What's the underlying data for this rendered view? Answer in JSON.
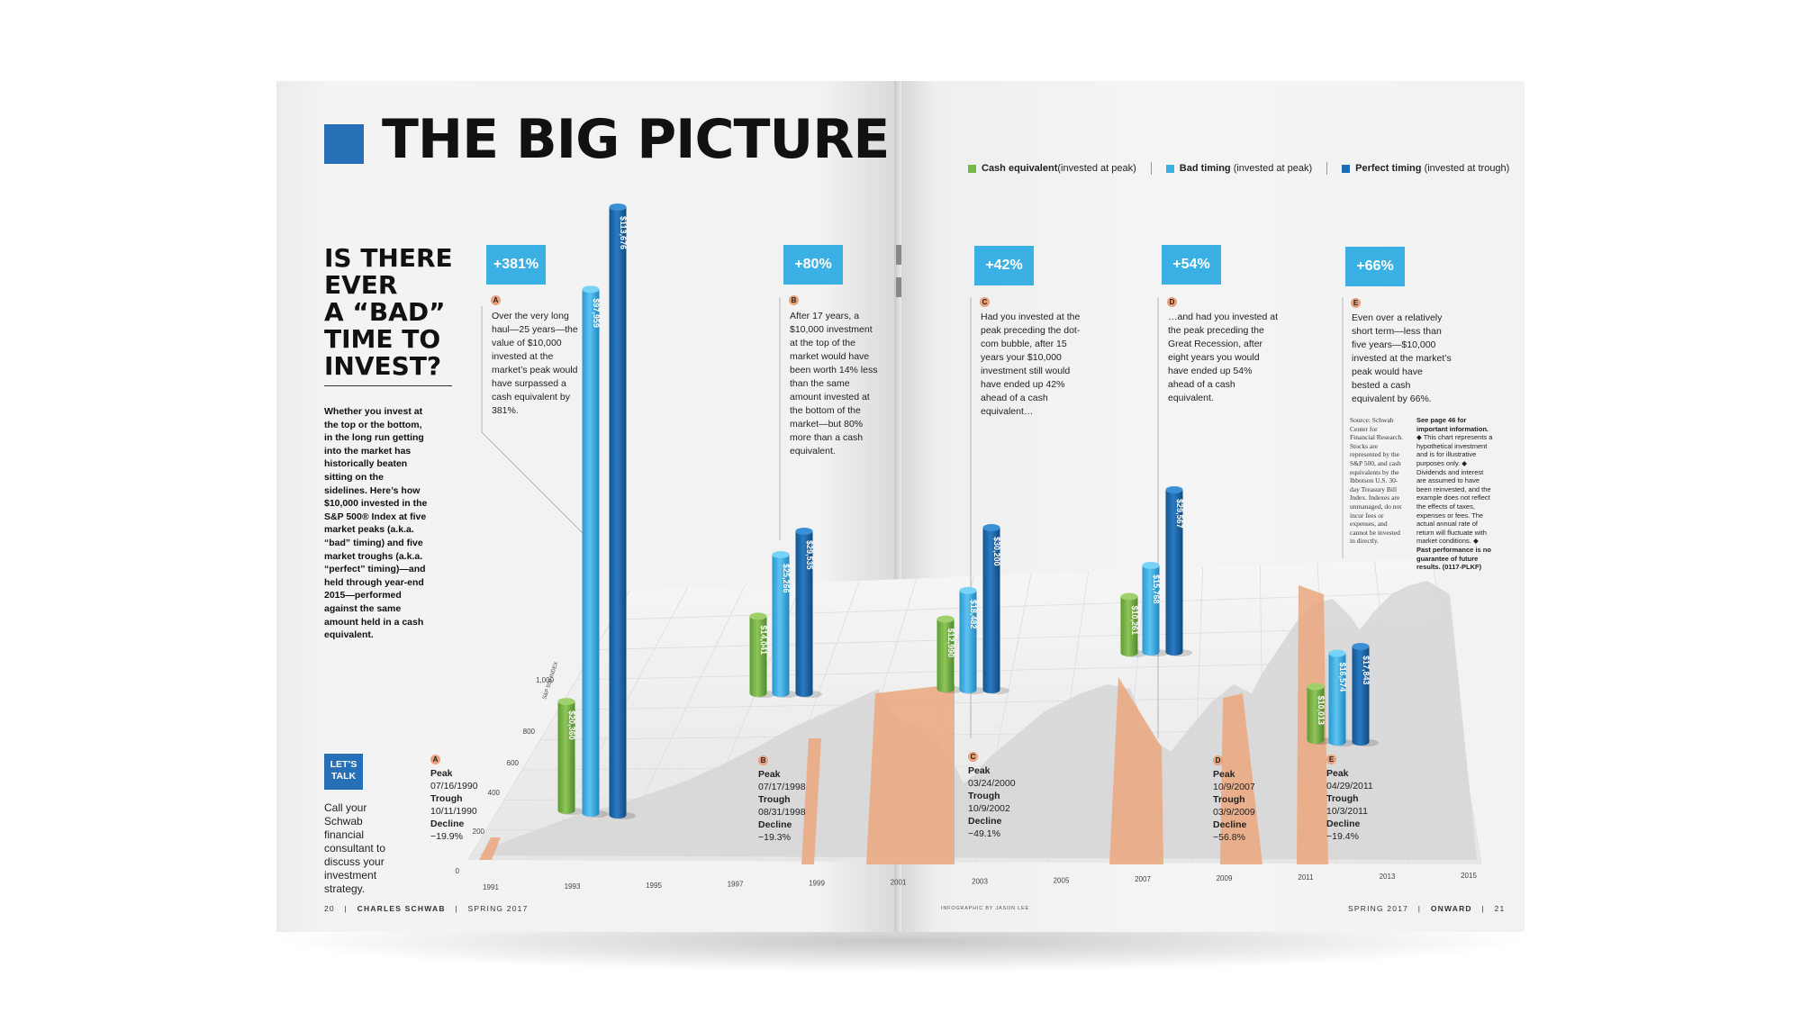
{
  "header": {
    "title": "THE BIG PICTURE"
  },
  "question": [
    "IS THERE",
    "EVER",
    "A “BAD”",
    "TIME TO",
    "INVEST?"
  ],
  "intro": "Whether you invest at the top or the bottom, in the long run getting into the market has historically beaten sitting on the sidelines. Here’s how $10,000 invested in the S&P 500® Index at five market peaks (a.k.a. “bad” timing) and five market troughs (a.k.a. “perfect” timing)—and held through year-end 2015—performed against the same amount held in a cash equivalent.",
  "lets_talk": {
    "badge": "LET’S TALK",
    "text": "Call your Schwab financial consultant to discuss your investment strategy."
  },
  "legend": [
    {
      "name": "Cash equivalent",
      "note": "(invested at peak)",
      "color": "#7ab648"
    },
    {
      "name": "Bad timing",
      "note": "(invested at peak)",
      "color": "#3ab0e4"
    },
    {
      "name": "Perfect timing",
      "note": "(invested at trough)",
      "color": "#1f6db0"
    }
  ],
  "periods": [
    {
      "letter": "A",
      "pct": "+381%",
      "desc": "Over the very long haul—25 years—the value of $10,000 invested at the market’s peak would have surpassed a cash equivalent by 381%.",
      "peak_label": "Peak",
      "peak": "07/16/1990",
      "trough_label": "Trough",
      "trough": "10/11/1990",
      "decline_label": "Decline",
      "decline": "−19.9%",
      "bars": [
        "$20,360",
        "$97,959",
        "$113,676"
      ],
      "values": [
        20360,
        97959,
        113676
      ]
    },
    {
      "letter": "B",
      "pct": "+80%",
      "desc": "After 17 years, a $10,000 investment at the top of the market would have been worth 14% less than the same amount invested at the bottom of the market—but 80% more than a cash equivalent.",
      "peak_label": "Peak",
      "peak": "07/17/1998",
      "trough_label": "Trough",
      "trough": "08/31/1998",
      "decline_label": "Decline",
      "decline": "−19.3%",
      "bars": [
        "$14,041",
        "$25,266",
        "$29,535"
      ],
      "values": [
        14041,
        25266,
        29535
      ]
    },
    {
      "letter": "C",
      "pct": "+42%",
      "desc": "Had you invested at the peak preceding the dot-com bubble, after 15 years your $10,000 investment still would have ended up 42% ahead of a cash equivalent…",
      "peak_label": "Peak",
      "peak": "03/24/2000",
      "trough_label": "Trough",
      "trough": "10/9/2002",
      "decline_label": "Decline",
      "decline": "−49.1%",
      "bars": [
        "$12,990",
        "$18,482",
        "$30,200"
      ],
      "values": [
        12990,
        18482,
        30200
      ]
    },
    {
      "letter": "D",
      "pct": "+54%",
      "desc": "…and had you invested at the peak preceding the Great Recession, after eight years you would have ended up 54% ahead of a cash equivalent.",
      "peak_label": "Peak",
      "peak": "10/9/2007",
      "trough_label": "Trough",
      "trough": "03/9/2009",
      "decline_label": "Decline",
      "decline": "−56.8%",
      "bars": [
        "$10,261",
        "$15,768",
        "$29,567"
      ],
      "values": [
        10261,
        15768,
        29567
      ]
    },
    {
      "letter": "E",
      "pct": "+66%",
      "desc": "Even over a relatively short term—less than five years—$10,000 invested at the market’s peak would have bested a cash equivalent by 66%.",
      "peak_label": "Peak",
      "peak": "04/29/2011",
      "trough_label": "Trough",
      "trough": "10/3/2011",
      "decline_label": "Decline",
      "decline": "−19.4%",
      "bars": [
        "$10,013",
        "$16,574",
        "$17,843"
      ],
      "values": [
        10013,
        16574,
        17843
      ]
    }
  ],
  "axis": {
    "y_ticks": [
      "0",
      "200",
      "400",
      "600",
      "800",
      "1,000"
    ],
    "y_label": "S&P 500 INDEX",
    "x_ticks": [
      "1991",
      "1993",
      "1995",
      "1997",
      "1999",
      "2001",
      "2003",
      "2005",
      "2007",
      "2009",
      "2011",
      "2013",
      "2015"
    ]
  },
  "source": "Source: Schwab Center for Financial Research. Stocks are represented by the S&P 500, and cash equivalents by the Ibbotson U.S. 30-day Treasury Bill Index. Indexes are unmanaged, do not incur fees or expenses, and cannot be invested in directly.",
  "see_page": {
    "bold": "See page 46 for important information.",
    "text": "◆ This chart represents a hypothetical investment and is for illustrative purposes only. ◆ Dividends and interest are assumed to have been reinvested, and the example does not reflect the effects of taxes, expenses or fees. The actual annual rate of return will fluctuate with market conditions.",
    "bold2": "◆ Past performance is no guarantee of future results. (0117-PLKF)"
  },
  "footer": {
    "left_page": "20",
    "left_brand": "CHARLES SCHWAB",
    "left_issue": "SPRING 2017",
    "credit": "INFOGRAPHIC BY JASON LEE",
    "right_issue": "SPRING 2017",
    "right_brand": "ONWARD",
    "right_page": "21"
  },
  "chart_data": {
    "type": "bar",
    "categories": [
      "A",
      "B",
      "C",
      "D",
      "E"
    ],
    "series": [
      {
        "name": "Cash equivalent",
        "values": [
          20360,
          14041,
          12990,
          10261,
          10013
        ]
      },
      {
        "name": "Bad timing",
        "values": [
          97959,
          25266,
          18482,
          15768,
          16574
        ]
      },
      {
        "name": "Perfect timing",
        "values": [
          113676,
          29535,
          30200,
          29567,
          17843
        ]
      }
    ]
  }
}
